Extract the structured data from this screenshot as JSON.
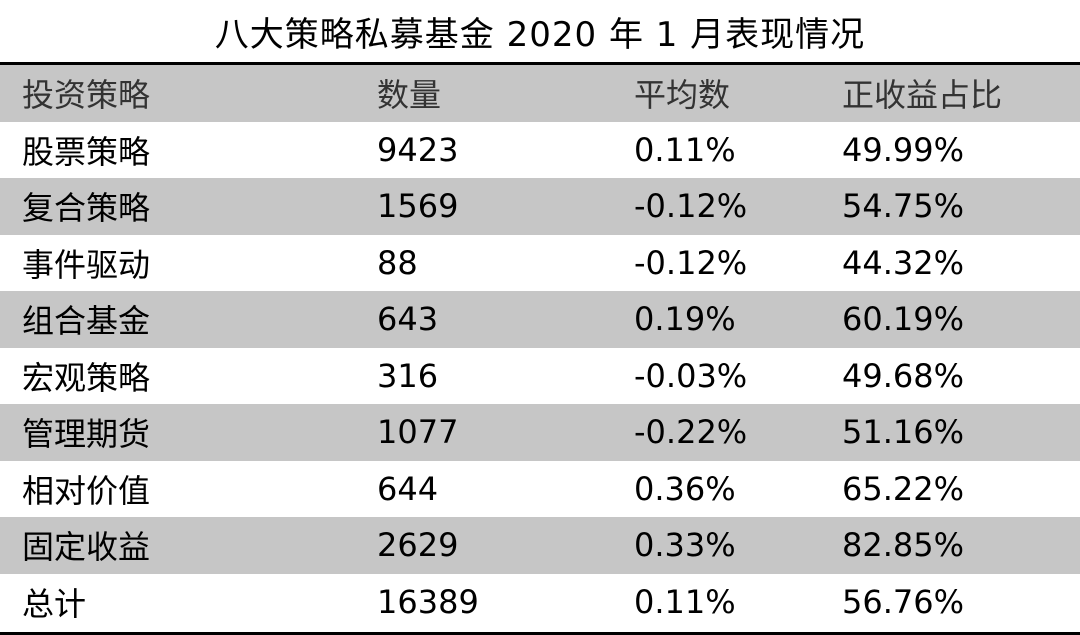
{
  "title": "八大策略私募基金 2020 年 1 月表现情况",
  "table": {
    "headers": [
      "投资策略",
      "数量",
      "平均数",
      "正收益占比"
    ],
    "rows": [
      [
        "股票策略",
        "9423",
        "0.11%",
        "49.99%"
      ],
      [
        "复合策略",
        "1569",
        "-0.12%",
        "54.75%"
      ],
      [
        "事件驱动",
        "88",
        "-0.12%",
        "44.32%"
      ],
      [
        "组合基金",
        "643",
        "0.19%",
        "60.19%"
      ],
      [
        "宏观策略",
        "316",
        "-0.03%",
        "49.68%"
      ],
      [
        "管理期货",
        "1077",
        "-0.22%",
        "51.16%"
      ],
      [
        "相对价值",
        "644",
        "0.36%",
        "65.22%"
      ],
      [
        "固定收益",
        "2629",
        "0.33%",
        "82.85%"
      ],
      [
        "总计",
        "16389",
        "0.11%",
        "56.76%"
      ]
    ]
  },
  "colors": {
    "shade": "#c6c6c6",
    "rule": "#000000"
  }
}
